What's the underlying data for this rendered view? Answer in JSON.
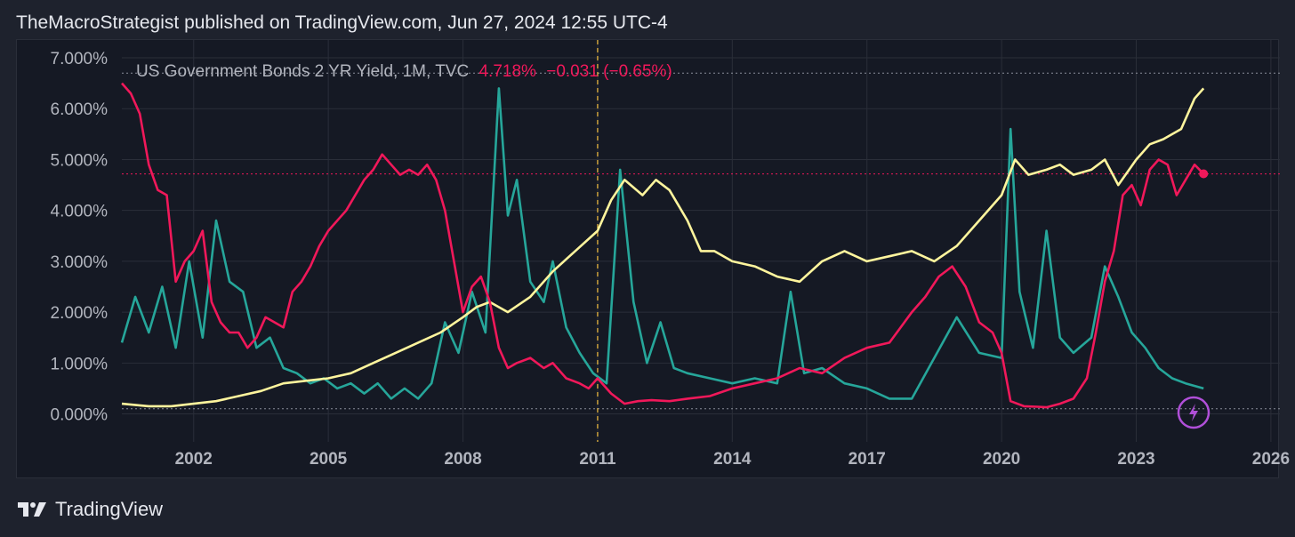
{
  "header": {
    "published_by": "TheMacroStrategist published on TradingView.com, Jun 27, 2024 12:55 UTC-4"
  },
  "footer": {
    "brand": "TradingView"
  },
  "legend": {
    "symbol": "US Government Bonds 2 YR Yield, 1M, TVC",
    "last": "4.718%",
    "change": "−0.031 (−0.65%)"
  },
  "colors": {
    "background": "#151924",
    "grid": "#2a2e39",
    "red_series": "#f0185a",
    "yellow_series": "#fff59d",
    "teal_series": "#26a69a",
    "vline": "#f5c242",
    "lightning_badge": "#b04fd8"
  },
  "chart_data": {
    "type": "line",
    "title": "US Government Bonds 2 YR Yield, 1M, TVC",
    "y_tick_labels": [
      "0.000%",
      "1.000%",
      "2.000%",
      "3.000%",
      "4.000%",
      "5.000%",
      "6.000%",
      "7.000%"
    ],
    "y_ticks": [
      0,
      1,
      2,
      3,
      4,
      5,
      6,
      7
    ],
    "x_tick_labels": [
      "2002",
      "2005",
      "2008",
      "2011",
      "2014",
      "2017",
      "2020",
      "2023",
      "2026"
    ],
    "x_ticks": [
      2002,
      2005,
      2008,
      2011,
      2014,
      2017,
      2020,
      2023,
      2026
    ],
    "xlim": [
      2000.4,
      2026.2
    ],
    "ylim": [
      -0.55,
      7.35
    ],
    "last_value_line": 4.718,
    "reference_dotted_lines": [
      0.1,
      6.7
    ],
    "vertical_marker_x": 2011.0,
    "grid": true,
    "series": [
      {
        "name": "US Government Bonds 2 YR Yield",
        "color": "#f0185a",
        "x": [
          2000.4,
          2000.6,
          2000.8,
          2001.0,
          2001.2,
          2001.4,
          2001.6,
          2001.8,
          2002.0,
          2002.2,
          2002.4,
          2002.6,
          2002.8,
          2003.0,
          2003.2,
          2003.4,
          2003.6,
          2003.8,
          2004.0,
          2004.2,
          2004.4,
          2004.6,
          2004.8,
          2005.0,
          2005.2,
          2005.4,
          2005.6,
          2005.8,
          2006.0,
          2006.2,
          2006.4,
          2006.6,
          2006.8,
          2007.0,
          2007.2,
          2007.4,
          2007.6,
          2007.8,
          2008.0,
          2008.2,
          2008.4,
          2008.6,
          2008.8,
          2009.0,
          2009.2,
          2009.5,
          2009.8,
          2010.0,
          2010.3,
          2010.6,
          2010.8,
          2011.0,
          2011.3,
          2011.6,
          2011.9,
          2012.2,
          2012.6,
          2013.0,
          2013.5,
          2014.0,
          2014.5,
          2015.0,
          2015.5,
          2016.0,
          2016.5,
          2017.0,
          2017.5,
          2018.0,
          2018.3,
          2018.6,
          2018.9,
          2019.2,
          2019.5,
          2019.8,
          2020.0,
          2020.2,
          2020.5,
          2020.8,
          2021.0,
          2021.3,
          2021.6,
          2021.9,
          2022.1,
          2022.3,
          2022.5,
          2022.7,
          2022.9,
          2023.1,
          2023.3,
          2023.5,
          2023.7,
          2023.9,
          2024.1,
          2024.3,
          2024.5
        ],
        "values": [
          6.5,
          6.3,
          5.9,
          4.9,
          4.4,
          4.3,
          2.6,
          3.0,
          3.2,
          3.6,
          2.2,
          1.8,
          1.6,
          1.6,
          1.3,
          1.5,
          1.9,
          1.8,
          1.7,
          2.4,
          2.6,
          2.9,
          3.3,
          3.6,
          3.8,
          4.0,
          4.3,
          4.6,
          4.8,
          5.1,
          4.9,
          4.7,
          4.8,
          4.7,
          4.9,
          4.6,
          4.0,
          3.0,
          2.0,
          2.5,
          2.7,
          2.2,
          1.3,
          0.9,
          1.0,
          1.1,
          0.9,
          1.0,
          0.7,
          0.6,
          0.5,
          0.7,
          0.4,
          0.2,
          0.25,
          0.27,
          0.25,
          0.3,
          0.35,
          0.5,
          0.6,
          0.7,
          0.9,
          0.8,
          1.1,
          1.3,
          1.4,
          2.0,
          2.3,
          2.7,
          2.9,
          2.5,
          1.8,
          1.6,
          1.2,
          0.25,
          0.15,
          0.14,
          0.13,
          0.2,
          0.3,
          0.7,
          1.6,
          2.6,
          3.2,
          4.3,
          4.5,
          4.1,
          4.8,
          5.0,
          4.9,
          4.3,
          4.6,
          4.9,
          4.72
        ]
      },
      {
        "name": "",
        "color": "#fff59d",
        "x": [
          2000.4,
          2001.0,
          2001.5,
          2002.0,
          2002.5,
          2003.0,
          2003.5,
          2004.0,
          2004.5,
          2005.0,
          2005.5,
          2006.0,
          2006.5,
          2007.0,
          2007.5,
          2008.0,
          2008.3,
          2008.6,
          2009.0,
          2009.5,
          2010.0,
          2010.5,
          2011.0,
          2011.3,
          2011.6,
          2012.0,
          2012.3,
          2012.6,
          2013.0,
          2013.3,
          2013.6,
          2014.0,
          2014.5,
          2015.0,
          2015.5,
          2016.0,
          2016.5,
          2017.0,
          2017.5,
          2018.0,
          2018.5,
          2019.0,
          2019.5,
          2020.0,
          2020.3,
          2020.6,
          2021.0,
          2021.3,
          2021.6,
          2022.0,
          2022.3,
          2022.6,
          2023.0,
          2023.3,
          2023.6,
          2024.0,
          2024.3,
          2024.5
        ],
        "values": [
          0.2,
          0.15,
          0.15,
          0.2,
          0.25,
          0.35,
          0.45,
          0.6,
          0.65,
          0.7,
          0.8,
          1.0,
          1.2,
          1.4,
          1.6,
          1.9,
          2.1,
          2.2,
          2.0,
          2.3,
          2.8,
          3.2,
          3.6,
          4.2,
          4.6,
          4.3,
          4.6,
          4.4,
          3.8,
          3.2,
          3.2,
          3.0,
          2.9,
          2.7,
          2.6,
          3.0,
          3.2,
          3.0,
          3.1,
          3.2,
          3.0,
          3.3,
          3.8,
          4.3,
          5.0,
          4.7,
          4.8,
          4.9,
          4.7,
          4.8,
          5.0,
          4.5,
          5.0,
          5.3,
          5.4,
          5.6,
          6.2,
          6.4
        ]
      },
      {
        "name": "",
        "color": "#26a69a",
        "x": [
          2000.4,
          2000.7,
          2001.0,
          2001.3,
          2001.6,
          2001.9,
          2002.2,
          2002.5,
          2002.8,
          2003.1,
          2003.4,
          2003.7,
          2004.0,
          2004.3,
          2004.6,
          2004.9,
          2005.2,
          2005.5,
          2005.8,
          2006.1,
          2006.4,
          2006.7,
          2007.0,
          2007.3,
          2007.6,
          2007.9,
          2008.2,
          2008.5,
          2008.8,
          2009.0,
          2009.2,
          2009.5,
          2009.8,
          2010.0,
          2010.3,
          2010.6,
          2010.9,
          2011.2,
          2011.5,
          2011.8,
          2012.1,
          2012.4,
          2012.7,
          2013.0,
          2013.5,
          2014.0,
          2014.5,
          2015.0,
          2015.3,
          2015.6,
          2016.0,
          2016.5,
          2017.0,
          2017.5,
          2018.0,
          2018.5,
          2019.0,
          2019.5,
          2020.0,
          2020.2,
          2020.4,
          2020.7,
          2021.0,
          2021.3,
          2021.6,
          2022.0,
          2022.3,
          2022.6,
          2022.9,
          2023.2,
          2023.5,
          2023.8,
          2024.1,
          2024.5
        ],
        "values": [
          1.4,
          2.3,
          1.6,
          2.5,
          1.3,
          3.0,
          1.5,
          3.8,
          2.6,
          2.4,
          1.3,
          1.5,
          0.9,
          0.8,
          0.6,
          0.7,
          0.5,
          0.6,
          0.4,
          0.6,
          0.3,
          0.5,
          0.3,
          0.6,
          1.8,
          1.2,
          2.4,
          1.6,
          6.4,
          3.9,
          4.6,
          2.6,
          2.2,
          3.0,
          1.7,
          1.2,
          0.8,
          0.6,
          4.8,
          2.2,
          1.0,
          1.8,
          0.9,
          0.8,
          0.7,
          0.6,
          0.7,
          0.6,
          2.4,
          0.8,
          0.9,
          0.6,
          0.5,
          0.3,
          0.3,
          1.1,
          1.9,
          1.2,
          1.1,
          5.6,
          2.4,
          1.3,
          3.6,
          1.5,
          1.2,
          1.5,
          2.9,
          2.3,
          1.6,
          1.3,
          0.9,
          0.7,
          0.6,
          0.5
        ]
      }
    ]
  }
}
